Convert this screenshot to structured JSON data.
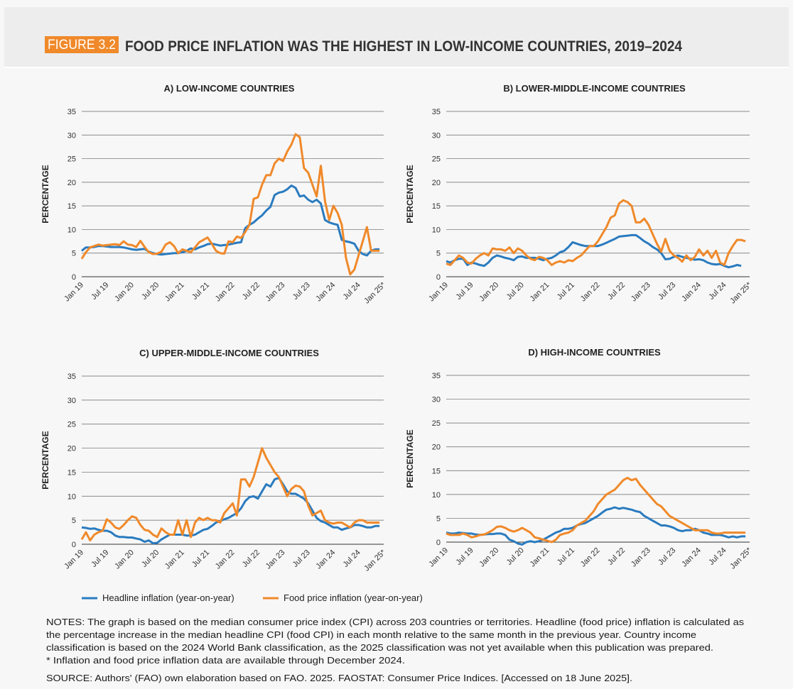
{
  "header": {
    "figure": "FIGURE 3.2",
    "title": "FOOD PRICE INFLATION WAS THE HIGHEST IN LOW-INCOME COUNTRIES, 2019–2024"
  },
  "chart_data": [
    {
      "type": "line",
      "title": "A) LOW-INCOME COUNTRIES",
      "y_label": "PERCENTAGE",
      "categories": [
        "Jan 19",
        null,
        null,
        null,
        null,
        null,
        "Jul 19",
        null,
        null,
        null,
        null,
        null,
        "Jan 20",
        null,
        null,
        null,
        null,
        null,
        "Jul 20",
        null,
        null,
        null,
        null,
        null,
        "Jan 21",
        null,
        null,
        null,
        null,
        null,
        "Jul 21",
        null,
        null,
        null,
        null,
        null,
        "Jan 22",
        null,
        null,
        null,
        null,
        null,
        "Jul 22",
        null,
        null,
        null,
        null,
        null,
        "Jan 23",
        null,
        null,
        null,
        null,
        null,
        "Jul 23",
        null,
        null,
        null,
        null,
        null,
        "Jan 24",
        null,
        null,
        null,
        null,
        null,
        "Jul 24",
        null,
        null,
        null,
        null,
        null,
        "Jan 25*"
      ],
      "series": [
        {
          "name": "Headline inflation (year-on-year)",
          "color": "#2a7bbf",
          "values": [
            5.5,
            6.2,
            6.2,
            6.3,
            6.5,
            6.5,
            6.4,
            6.3,
            6.3,
            6.3,
            6.2,
            6.0,
            5.8,
            5.7,
            5.8,
            5.9,
            5.3,
            5.0,
            4.8,
            4.7,
            4.8,
            4.9,
            5.0,
            5.0,
            5.2,
            5.5,
            6.0,
            5.8,
            6.2,
            6.5,
            6.9,
            7.0,
            6.8,
            6.6,
            6.7,
            6.8,
            7.0,
            7.2,
            7.3,
            10.3,
            11.0,
            11.5,
            12.3,
            13.0,
            14.0,
            14.8,
            17.3,
            17.8,
            18.0,
            18.5,
            19.3,
            18.8,
            17.0,
            17.2,
            16.3,
            15.8,
            16.3,
            15.5,
            12.0,
            11.5,
            11.2,
            11.0,
            7.8,
            7.5,
            7.3,
            7.0,
            5.5,
            4.8,
            4.5,
            5.5,
            5.8,
            5.8,
            null
          ]
        },
        {
          "name": "Food price inflation (year-on-year)",
          "color": "#f0892a",
          "values": [
            3.8,
            5.2,
            6.2,
            6.5,
            6.8,
            6.6,
            6.7,
            6.8,
            6.9,
            6.7,
            7.5,
            6.8,
            6.7,
            6.3,
            7.6,
            6.3,
            5.2,
            4.8,
            4.9,
            5.3,
            6.8,
            7.3,
            6.5,
            5.0,
            5.8,
            5.5,
            5.2,
            6.2,
            7.3,
            7.8,
            8.3,
            7.0,
            5.5,
            5.0,
            4.9,
            7.5,
            7.3,
            8.5,
            8.2,
            9.5,
            11.0,
            16.5,
            16.8,
            19.5,
            21.5,
            21.5,
            24.0,
            25.0,
            24.5,
            26.5,
            28.0,
            30.2,
            29.5,
            23.0,
            22.0,
            19.5,
            17.0,
            23.5,
            16.0,
            12.0,
            15.0,
            13.5,
            11.0,
            4.0,
            0.5,
            1.5,
            4.5,
            7.5,
            10.5,
            5.5,
            5.5,
            5.5,
            null
          ]
        }
      ],
      "ylim": [
        0,
        35
      ],
      "yticks": [
        0,
        5,
        10,
        15,
        20,
        25,
        30,
        35
      ],
      "grid": true
    },
    {
      "type": "line",
      "title": "B) LOWER-MIDDLE-INCOME COUNTRIES",
      "y_label": "PERCENTAGE",
      "categories": [
        "Jan 19",
        null,
        null,
        null,
        null,
        null,
        "Jul 19",
        null,
        null,
        null,
        null,
        null,
        "Jan 20",
        null,
        null,
        null,
        null,
        null,
        "Jul 20",
        null,
        null,
        null,
        null,
        null,
        "Jan 21",
        null,
        null,
        null,
        null,
        null,
        "Jul 21",
        null,
        null,
        null,
        null,
        null,
        "Jan 22",
        null,
        null,
        null,
        null,
        null,
        "Jul 22",
        null,
        null,
        null,
        null,
        null,
        "Jan 23",
        null,
        null,
        null,
        null,
        null,
        "Jul 23",
        null,
        null,
        null,
        null,
        null,
        "Jan 24",
        null,
        null,
        null,
        null,
        null,
        "Jul 24",
        null,
        null,
        null,
        null,
        null,
        "Jan 25*"
      ],
      "series": [
        {
          "name": "Headline inflation (year-on-year)",
          "color": "#2a7bbf",
          "values": [
            3.3,
            3.0,
            3.5,
            3.8,
            3.8,
            2.5,
            3.0,
            2.8,
            2.5,
            2.3,
            3.0,
            4.0,
            4.5,
            4.3,
            4.0,
            3.8,
            3.5,
            4.2,
            4.3,
            4.0,
            4.0,
            4.0,
            3.8,
            3.5,
            3.8,
            4.0,
            4.5,
            5.2,
            5.5,
            6.3,
            7.3,
            7.0,
            6.7,
            6.5,
            6.5,
            6.5,
            6.5,
            6.8,
            7.2,
            7.6,
            8.0,
            8.5,
            8.6,
            8.7,
            8.8,
            8.8,
            8.2,
            7.5,
            7.0,
            6.3,
            5.8,
            5.0,
            3.7,
            3.8,
            4.2,
            4.5,
            4.2,
            4.0,
            3.8,
            3.6,
            3.7,
            3.5,
            3.0,
            2.7,
            2.6,
            2.7,
            2.3,
            2.0,
            2.2,
            2.5,
            2.3,
            null,
            null
          ]
        },
        {
          "name": "Food price inflation (year-on-year)",
          "color": "#f0892a",
          "values": [
            2.8,
            2.5,
            3.5,
            4.5,
            4.0,
            3.0,
            2.8,
            3.8,
            4.5,
            5.0,
            4.5,
            6.0,
            5.8,
            5.8,
            5.5,
            6.2,
            5.0,
            6.0,
            5.5,
            4.5,
            3.8,
            3.5,
            4.2,
            4.0,
            3.5,
            2.5,
            3.0,
            3.3,
            3.0,
            3.5,
            3.3,
            4.0,
            4.5,
            5.5,
            6.5,
            6.5,
            7.5,
            9.0,
            10.5,
            12.5,
            13.0,
            15.5,
            16.2,
            15.8,
            15.0,
            11.5,
            11.5,
            12.3,
            11.0,
            9.0,
            7.0,
            5.3,
            8.0,
            5.5,
            4.5,
            4.0,
            3.2,
            4.5,
            3.5,
            4.2,
            5.8,
            4.5,
            5.5,
            4.0,
            5.5,
            3.0,
            2.5,
            5.0,
            6.5,
            7.8,
            7.8,
            7.5,
            null
          ]
        }
      ],
      "ylim": [
        0,
        35
      ],
      "yticks": [
        0,
        5,
        10,
        15,
        20,
        25,
        30,
        35
      ],
      "grid": true
    },
    {
      "type": "line",
      "title": "C) UPPER-MIDDLE-INCOME COUNTRIES",
      "y_label": "PERCENTAGE",
      "categories": [
        "Jan 19",
        null,
        null,
        null,
        null,
        null,
        "Jul 19",
        null,
        null,
        null,
        null,
        null,
        "Jan 20",
        null,
        null,
        null,
        null,
        null,
        "Jul 20",
        null,
        null,
        null,
        null,
        null,
        "Jan 21",
        null,
        null,
        null,
        null,
        null,
        "Jul 21",
        null,
        null,
        null,
        null,
        null,
        "Jan 22",
        null,
        null,
        null,
        null,
        null,
        "Jul 22",
        null,
        null,
        null,
        null,
        null,
        "Jan 23",
        null,
        null,
        null,
        null,
        null,
        "Jul 23",
        null,
        null,
        null,
        null,
        null,
        "Jan 24",
        null,
        null,
        null,
        null,
        null,
        "Jul 24",
        null,
        null,
        null,
        null,
        null,
        "Jan 25*"
      ],
      "series": [
        {
          "name": "Headline inflation (year-on-year)",
          "color": "#2a7bbf",
          "values": [
            3.5,
            3.4,
            3.2,
            3.3,
            3.0,
            2.8,
            2.8,
            2.5,
            1.8,
            1.5,
            1.5,
            1.4,
            1.4,
            1.2,
            1.0,
            0.5,
            0.8,
            0.2,
            0.3,
            1.0,
            1.5,
            2.0,
            2.0,
            2.0,
            2.0,
            1.8,
            1.8,
            2.0,
            2.5,
            3.0,
            3.2,
            3.8,
            4.5,
            4.8,
            5.2,
            5.5,
            6.0,
            6.5,
            7.5,
            9.0,
            9.8,
            10.0,
            9.5,
            11.0,
            12.5,
            12.0,
            13.5,
            13.8,
            12.5,
            11.0,
            10.5,
            10.5,
            10.0,
            9.5,
            8.5,
            7.0,
            5.5,
            4.8,
            4.5,
            4.0,
            3.5,
            3.5,
            3.0,
            3.3,
            3.5,
            4.0,
            4.0,
            3.8,
            3.5,
            3.5,
            3.8,
            3.8,
            null
          ]
        },
        {
          "name": "Food price inflation (year-on-year)",
          "color": "#f0892a",
          "values": [
            1.0,
            2.5,
            0.8,
            2.0,
            2.5,
            2.8,
            5.2,
            4.5,
            3.5,
            3.2,
            4.0,
            5.0,
            5.8,
            5.5,
            4.0,
            3.0,
            2.8,
            2.0,
            1.5,
            3.3,
            2.5,
            2.0,
            2.0,
            5.0,
            2.0,
            5.0,
            1.5,
            4.5,
            5.5,
            5.0,
            5.5,
            5.0,
            5.0,
            4.5,
            6.5,
            7.5,
            8.5,
            6.0,
            13.5,
            13.5,
            12.0,
            14.0,
            17.0,
            20.0,
            18.0,
            16.5,
            15.0,
            14.0,
            12.0,
            10.0,
            11.5,
            12.2,
            12.0,
            11.0,
            8.0,
            6.0,
            6.5,
            7.0,
            5.0,
            4.5,
            4.3,
            4.5,
            4.5,
            4.0,
            3.5,
            4.5,
            5.0,
            5.0,
            4.5,
            4.5,
            4.5,
            4.5,
            null
          ]
        }
      ],
      "ylim": [
        0,
        35
      ],
      "yticks": [
        0,
        5,
        10,
        15,
        20,
        25,
        30,
        35
      ],
      "grid": true
    },
    {
      "type": "line",
      "title": "D) HIGH-INCOME COUNTRIES",
      "y_label": "PERCENTAGE",
      "categories": [
        "Jan 19",
        null,
        null,
        null,
        null,
        null,
        "Jul 19",
        null,
        null,
        null,
        null,
        null,
        "Jan 20",
        null,
        null,
        null,
        null,
        null,
        "Jul 20",
        null,
        null,
        null,
        null,
        null,
        "Jan 21",
        null,
        null,
        null,
        null,
        null,
        "Jul 21",
        null,
        null,
        null,
        null,
        null,
        "Jan 22",
        null,
        null,
        null,
        null,
        null,
        "Jul 22",
        null,
        null,
        null,
        null,
        null,
        "Jan 23",
        null,
        null,
        null,
        null,
        null,
        "Jul 23",
        null,
        null,
        null,
        null,
        null,
        "Jan 24",
        null,
        null,
        null,
        null,
        null,
        "Jul 24",
        null,
        null,
        null,
        null,
        null,
        "Jan 25*"
      ],
      "series": [
        {
          "name": "Headline inflation (year-on-year)",
          "color": "#2a7bbf",
          "values": [
            2.0,
            1.8,
            1.8,
            2.0,
            1.9,
            1.8,
            1.8,
            1.6,
            1.5,
            1.6,
            1.7,
            1.7,
            1.8,
            1.8,
            1.5,
            0.5,
            0.2,
            -0.3,
            -0.5,
            0.0,
            0.2,
            0.0,
            0.2,
            0.5,
            1.0,
            1.5,
            2.0,
            2.3,
            2.8,
            2.8,
            3.0,
            3.5,
            3.8,
            4.0,
            4.5,
            5.0,
            5.5,
            6.2,
            6.8,
            7.0,
            7.3,
            7.0,
            7.2,
            7.0,
            6.8,
            6.5,
            6.3,
            5.5,
            5.0,
            4.5,
            4.0,
            3.5,
            3.5,
            3.3,
            3.0,
            2.5,
            2.3,
            2.5,
            2.5,
            2.8,
            2.5,
            2.0,
            1.8,
            1.5,
            1.5,
            1.5,
            1.3,
            1.0,
            1.2,
            1.0,
            1.2,
            1.2,
            null
          ]
        },
        {
          "name": "Food price inflation (year-on-year)",
          "color": "#f0892a",
          "values": [
            1.8,
            1.5,
            1.5,
            1.5,
            1.8,
            1.5,
            1.0,
            1.2,
            1.5,
            1.6,
            2.0,
            2.5,
            3.2,
            3.3,
            3.0,
            2.5,
            2.2,
            2.5,
            3.0,
            2.5,
            2.0,
            1.0,
            0.8,
            0.5,
            0.3,
            0.0,
            0.5,
            1.5,
            1.8,
            2.0,
            2.5,
            3.5,
            4.0,
            4.5,
            5.5,
            6.5,
            8.0,
            9.0,
            10.0,
            10.5,
            11.0,
            12.0,
            13.0,
            13.5,
            13.0,
            13.3,
            12.0,
            11.0,
            10.0,
            9.0,
            8.0,
            7.5,
            6.5,
            5.5,
            5.0,
            4.5,
            4.0,
            3.5,
            3.0,
            2.5,
            2.5,
            2.5,
            2.5,
            2.0,
            1.8,
            1.8,
            2.0,
            2.0,
            2.0,
            2.0,
            2.0,
            2.0,
            null
          ]
        }
      ],
      "ylim": [
        0,
        35
      ],
      "yticks": [
        0,
        5,
        10,
        15,
        20,
        25,
        30,
        35
      ],
      "grid": true
    }
  ],
  "notes": [
    "NOTES: The graph is based on the median consumer price index (CPI) across 203 countries or territories. Headline (food price) inflation is calculated as",
    "the percentage increase in the median headline CPI (food CPI) in each month relative to the same month in the previous year. Country income",
    "classification is based on the 2024 World Bank classification, as the 2025 classification was not yet available when this publication was prepared.",
    "* Inflation and food price inflation data are available through December 2024."
  ],
  "source": "SOURCE: Authors' (FAO) own elaboration based on FAO. 2025. FAOSTAT: Consumer Price Indices. [Accessed on 18 June 2025]."
}
